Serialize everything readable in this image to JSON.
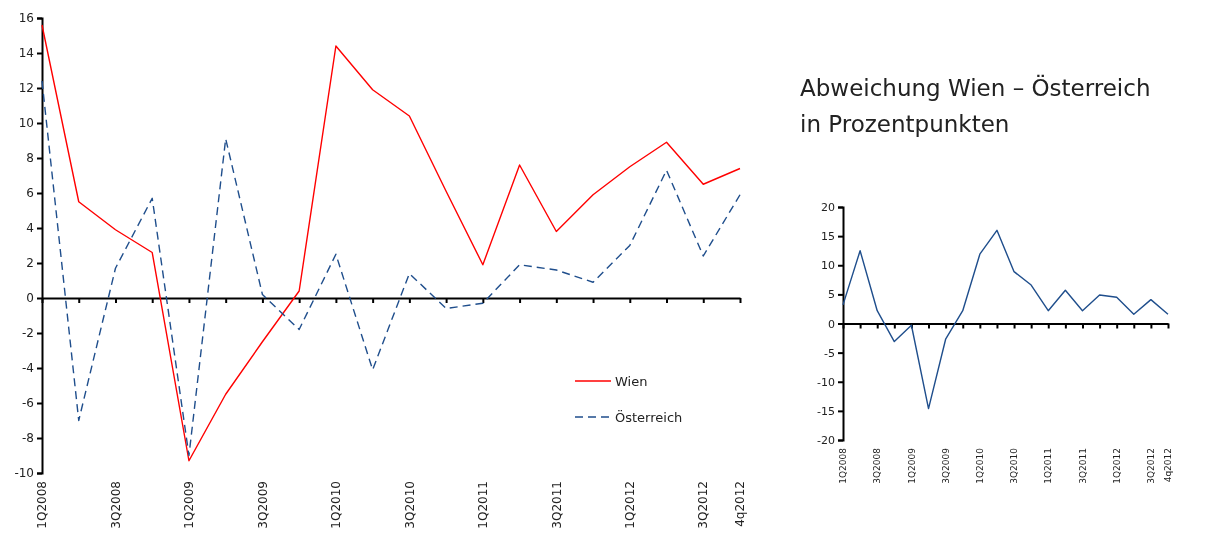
{
  "chart_data": [
    {
      "type": "line",
      "categories": [
        "1Q2008",
        null,
        "3Q2008",
        null,
        "1Q2009",
        null,
        "3Q2009",
        null,
        "1Q2010",
        null,
        "3Q2010",
        null,
        "1Q2011",
        null,
        "3Q2011",
        null,
        "1Q2012",
        null,
        "3Q2012",
        "4q2012"
      ],
      "series": [
        {
          "name": "Wien",
          "color": "#ff0000",
          "line_style": "solid",
          "values": [
            15.6,
            5.5,
            3.9,
            2.6,
            -9.3,
            -5.5,
            -2.5,
            0.4,
            14.4,
            11.9,
            10.4,
            6.1,
            1.9,
            7.6,
            3.8,
            5.9,
            7.5,
            8.9,
            6.5,
            7.4
          ]
        },
        {
          "name": "Österreich",
          "color": "#1f4e8c",
          "line_style": "dashed",
          "values": [
            12.4,
            -7.0,
            1.7,
            5.7,
            -9.0,
            9.1,
            0.2,
            -1.8,
            2.5,
            -4.1,
            1.4,
            -0.6,
            -0.3,
            1.9,
            1.6,
            0.9,
            3.0,
            7.3,
            2.4,
            5.9
          ]
        }
      ],
      "ylim": [
        -10,
        16
      ],
      "yticks": [
        -10,
        -8,
        -6,
        -4,
        -2,
        0,
        2,
        4,
        6,
        8,
        10,
        12,
        14,
        16
      ],
      "legend": "bottom right",
      "marker": "none"
    },
    {
      "type": "line",
      "title": "Abweichung Wien – Österreich in Prozentpunkten",
      "categories": [
        "1Q2008",
        null,
        "3Q2008",
        null,
        "1Q2009",
        null,
        "3Q2009",
        null,
        "1Q2010",
        null,
        "3Q2010",
        null,
        "1Q2011",
        null,
        "3Q2011",
        null,
        "1Q2012",
        null,
        "3Q2012",
        "4q2012"
      ],
      "series": [
        {
          "color": "#1f4e8c",
          "values": [
            3.2,
            12.5,
            2.2,
            -3.1,
            -0.3,
            -14.6,
            -2.7,
            2.2,
            11.9,
            16.0,
            8.9,
            6.6,
            2.2,
            5.7,
            2.2,
            4.9,
            4.5,
            1.6,
            4.1,
            1.6
          ]
        }
      ],
      "ylim": [
        -20,
        20
      ],
      "yticks": [
        -20,
        -15,
        -10,
        -5,
        0,
        5,
        10,
        15,
        20
      ],
      "legend": false,
      "marker": "none",
      "line_style": "solid"
    }
  ]
}
